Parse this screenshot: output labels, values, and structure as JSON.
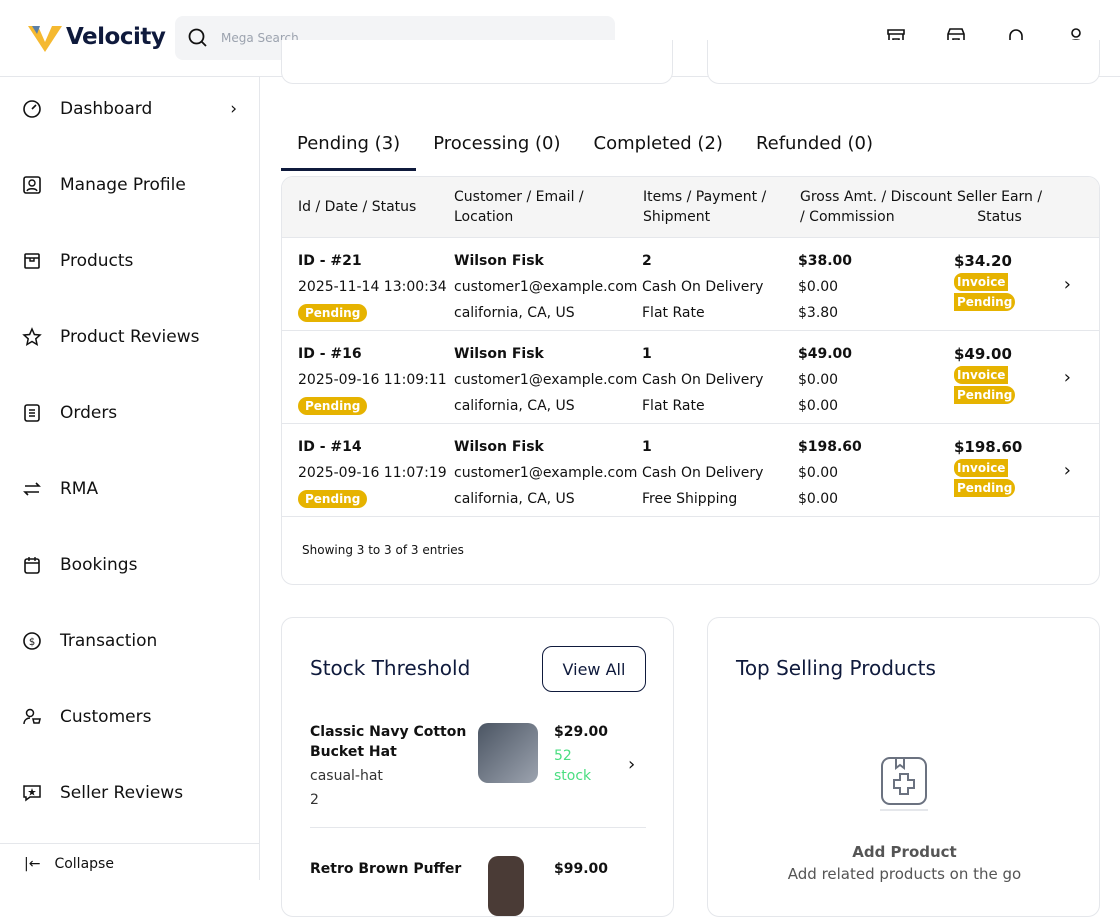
{
  "header": {
    "brand": "Velocity",
    "search_placeholder": "Mega Search"
  },
  "sidebar": {
    "items": [
      {
        "label": "Dashboard",
        "icon": "gauge-icon"
      },
      {
        "label": "Manage Profile",
        "icon": "profile-icon"
      },
      {
        "label": "Products",
        "icon": "box-icon"
      },
      {
        "label": "Product Reviews",
        "icon": "star-icon"
      },
      {
        "label": "Orders",
        "icon": "document-icon"
      },
      {
        "label": "RMA",
        "icon": "arrows-icon"
      },
      {
        "label": "Bookings",
        "icon": "calendar-icon"
      },
      {
        "label": "Transaction",
        "icon": "dollar-icon"
      },
      {
        "label": "Customers",
        "icon": "customers-icon"
      },
      {
        "label": "Seller Reviews",
        "icon": "review-icon"
      }
    ],
    "collapse": "Collapse"
  },
  "tabs": [
    "Pending (3)",
    "Processing (0)",
    "Completed (2)",
    "Refunded (0)"
  ],
  "table": {
    "headers": [
      [
        "Id / Date / Status"
      ],
      [
        "Customer / Email /",
        "Location"
      ],
      [
        "Items / Payment /",
        "Shipment"
      ],
      [
        "Gross Amt. / Discount",
        "/ Commission"
      ],
      [
        "Seller Earn /",
        "Status"
      ]
    ],
    "rows": [
      {
        "id": "ID - #21",
        "date": "2025-11-14 13:00:34",
        "status": "Pending",
        "customer": "Wilson Fisk",
        "email": "customer1@example.com",
        "location": "california, CA, US",
        "items": "2",
        "payment": "Cash On Delivery",
        "shipment": "Flat Rate",
        "gross": "$38.00",
        "discount": "$0.00",
        "commission": "$3.80",
        "earn": "$34.20",
        "invoice": "Invoice",
        "earn_status": "Pending"
      },
      {
        "id": "ID - #16",
        "date": "2025-09-16 11:09:11",
        "status": "Pending",
        "customer": "Wilson Fisk",
        "email": "customer1@example.com",
        "location": "california, CA, US",
        "items": "1",
        "payment": "Cash On Delivery",
        "shipment": "Flat Rate",
        "gross": "$49.00",
        "discount": "$0.00",
        "commission": "$0.00",
        "earn": "$49.00",
        "invoice": "Invoice",
        "earn_status": "Pending"
      },
      {
        "id": "ID - #14",
        "date": "2025-09-16 11:07:19",
        "status": "Pending",
        "customer": "Wilson Fisk",
        "email": "customer1@example.com",
        "location": "california, CA, US",
        "items": "1",
        "payment": "Cash On Delivery",
        "shipment": "Free Shipping",
        "gross": "$198.60",
        "discount": "$0.00",
        "commission": "$0.00",
        "earn": "$198.60",
        "invoice": "Invoice",
        "earn_status": "Pending"
      }
    ],
    "footer": "Showing 3 to 3 of 3 entries"
  },
  "stock": {
    "title": "Stock Threshold",
    "view_all": "View All",
    "items": [
      {
        "name1": "Classic Navy Cotton",
        "name2": "Bucket Hat",
        "sku": "casual-hat",
        "qty": "2",
        "price": "$29.00",
        "stock1": "52",
        "stock2": "stock"
      },
      {
        "name1": "Retro Brown Puffer",
        "price": "$99.00"
      }
    ]
  },
  "top_selling": {
    "title": "Top Selling Products",
    "empty_title": "Add Product",
    "empty_text": "Add related products on the go"
  },
  "colors": {
    "brand": "#0f1a3c",
    "pending": "#e6b300",
    "stock": "#4ade80"
  }
}
